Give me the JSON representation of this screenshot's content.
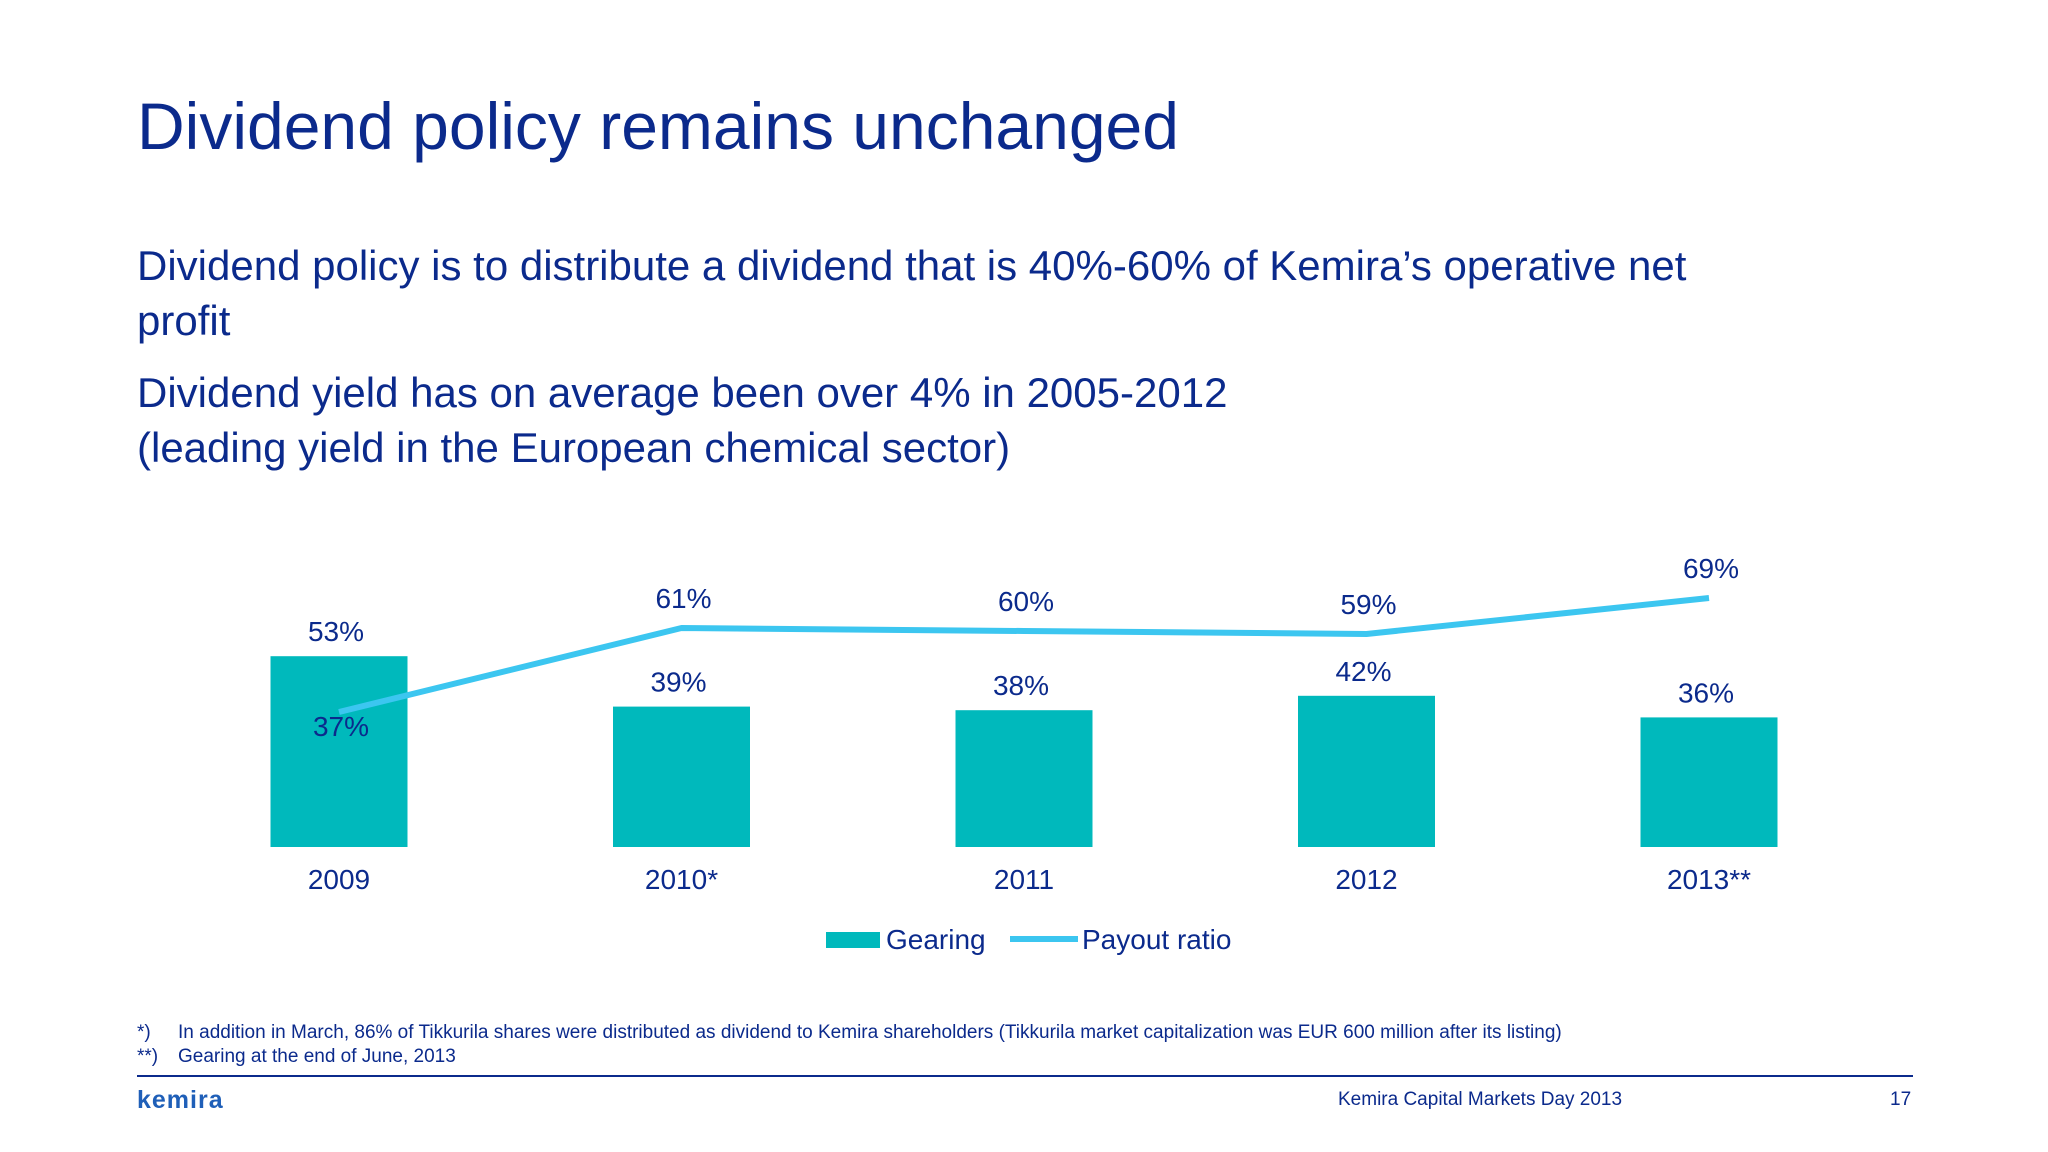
{
  "slide": {
    "title": "Dividend policy remains unchanged",
    "bullet1_line1": "Dividend policy is to distribute a dividend that is 40%-60% of Kemira’s operative net",
    "bullet1_line2": "profit",
    "bullet2_line1": "Dividend yield has on average been over 4% in 2005-2012",
    "bullet2_line2": "(leading yield in the European chemical sector)"
  },
  "chart_data": {
    "type": "bar",
    "categories": [
      "2009",
      "2010*",
      "2011",
      "2012",
      "2013**"
    ],
    "series": [
      {
        "name": "Gearing",
        "type": "bar",
        "color": "#00b9bc",
        "values": [
          53,
          39,
          38,
          42,
          36
        ],
        "labels": [
          "53%",
          "39%",
          "38%",
          "42%",
          "36%"
        ]
      },
      {
        "name": "Payout ratio",
        "type": "line",
        "color": "#3cc6f0",
        "values": [
          37,
          61,
          60,
          59,
          69
        ],
        "labels": [
          "37%",
          "61%",
          "60%",
          "59%",
          "69%"
        ]
      }
    ],
    "legend_position": "bottom",
    "grid": false
  },
  "footnotes": [
    {
      "mark": "*)",
      "text": "In addition in March, 86% of Tikkurila shares were distributed as dividend to Kemira shareholders (Tikkurila market capitalization was EUR 600 million after its listing)"
    },
    {
      "mark": "**)",
      "text": "Gearing at the end of June, 2013"
    }
  ],
  "footer": {
    "logo": "kemira",
    "event": "Kemira Capital Markets Day 2013",
    "page": "17"
  },
  "colors": {
    "text": "#0b2a8c",
    "bar": "#00b9bc",
    "line": "#3cc6f0"
  }
}
